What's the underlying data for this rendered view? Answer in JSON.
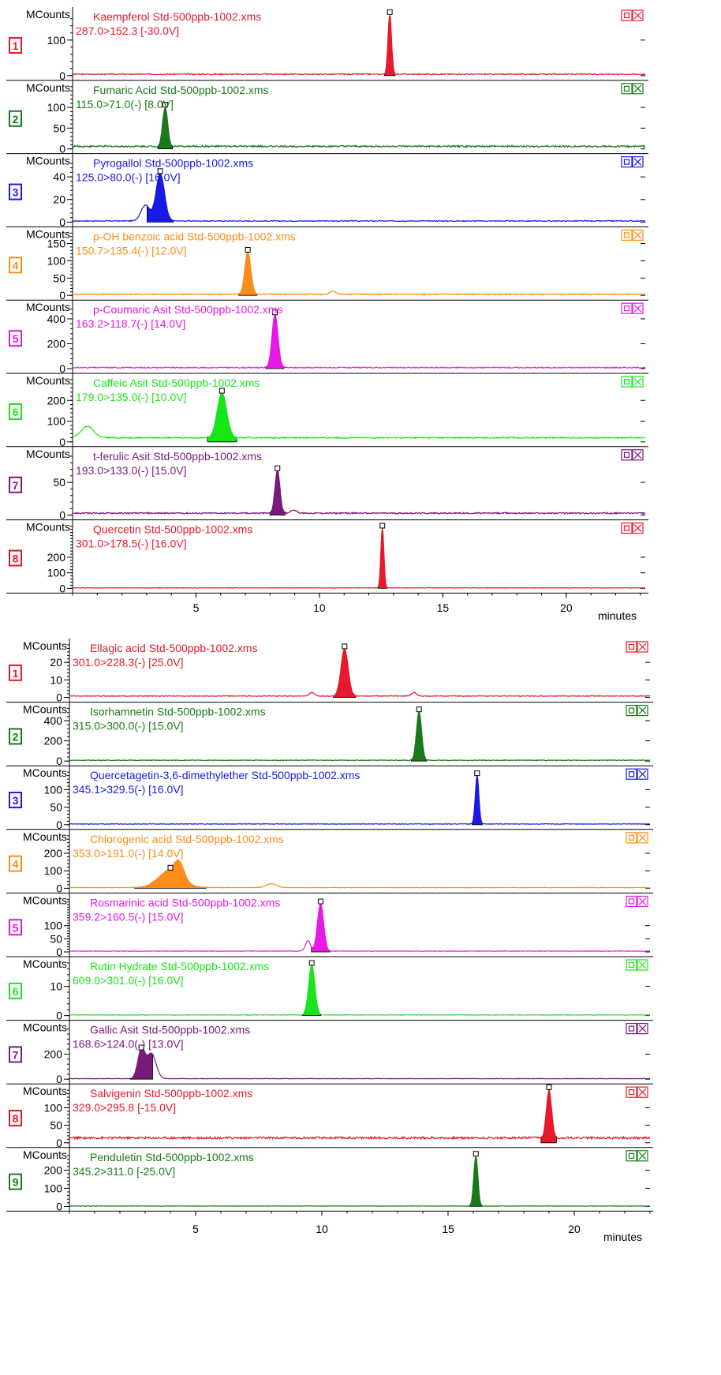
{
  "chart_data": [
    {
      "type": "line",
      "title": "",
      "xlabel": "minutes",
      "xlim": [
        0,
        23.2
      ],
      "x_ticks": [
        5,
        10,
        15,
        20
      ],
      "grid": false,
      "panels": [
        {
          "index": "1",
          "name": "Kaempferol Std-500ppb-1002.xms",
          "transition": "287.0>152.3 [-30.0V]",
          "color": "#e8192c",
          "ylabel": "MCounts",
          "ylim": [
            0,
            175
          ],
          "yticks": [
            0,
            100
          ],
          "baseline": 4,
          "noise": 1.5,
          "peaks": [
            {
              "rt": 12.85,
              "height": 168,
              "width": 0.07
            }
          ]
        },
        {
          "index": "2",
          "name": "Fumaric Acid Std-500ppb-1002.xms",
          "transition": "115.0>71.0(-) [8.0V]",
          "color": "#1a7a1a",
          "ylabel": "MCounts",
          "ylim": [
            0,
            150
          ],
          "yticks": [
            0,
            50,
            100
          ],
          "baseline": 6,
          "noise": 2,
          "peaks": [
            {
              "rt": 3.75,
              "height": 95,
              "width": 0.1
            }
          ]
        },
        {
          "index": "3",
          "name": "Pyrogallol Std-500ppb-1002.xms",
          "transition": "125.0>80.0(-) [16.0V]",
          "color": "#1a1ae6",
          "ylabel": "MCounts",
          "ylim": [
            0,
            55
          ],
          "yticks": [
            0,
            20,
            40
          ],
          "baseline": 1,
          "noise": 0.4,
          "peaks": [
            {
              "rt": 2.95,
              "height": 14,
              "width": 0.18
            },
            {
              "rt": 3.55,
              "height": 42,
              "width": 0.17
            }
          ]
        },
        {
          "index": "4",
          "name": "p-OH benzoic acid Std-500ppb-1002.xms",
          "transition": "150.7>135.4(-) [12.0V]",
          "color": "#ff8c1a",
          "ylabel": "MCounts",
          "ylim": [
            0,
            180
          ],
          "yticks": [
            0,
            50,
            100,
            150
          ],
          "baseline": 3,
          "noise": 1.5,
          "peaks": [
            {
              "rt": 7.1,
              "height": 122,
              "width": 0.12
            },
            {
              "rt": 10.55,
              "height": 10,
              "width": 0.12
            }
          ]
        },
        {
          "index": "5",
          "name": "p-Coumaric Asit Std-500ppb-1002.xms",
          "transition": "163.2>118.7(-) [14.0V]",
          "color": "#e619e6",
          "ylabel": "MCounts",
          "ylim": [
            0,
            500
          ],
          "yticks": [
            0,
            200,
            400
          ],
          "baseline": 8,
          "noise": 4,
          "peaks": [
            {
              "rt": 8.2,
              "height": 425,
              "width": 0.12
            }
          ]
        },
        {
          "index": "6",
          "name": "Caffeic Asit Std-500ppb-1002.xms",
          "transition": "179.0>135.0(-) [10.0V]",
          "color": "#19e619",
          "ylabel": "MCounts",
          "ylim": [
            0,
            300
          ],
          "yticks": [
            0,
            100,
            200
          ],
          "baseline": 20,
          "noise": 3,
          "peaks": [
            {
              "rt": 0.6,
              "height": 55,
              "width": 0.25
            },
            {
              "rt": 6.05,
              "height": 215,
              "width": 0.19
            }
          ]
        },
        {
          "index": "7",
          "name": "t-ferulic Asit Std-500ppb-1002.xms",
          "transition": "193.0>133.0(-) [15.0V]",
          "color": "#7a1a7a",
          "ylabel": "MCounts",
          "ylim": [
            0,
            95
          ],
          "yticks": [
            0,
            50
          ],
          "baseline": 3,
          "noise": 1,
          "peaks": [
            {
              "rt": 8.3,
              "height": 65,
              "width": 0.1
            },
            {
              "rt": 8.95,
              "height": 5,
              "width": 0.12
            }
          ]
        },
        {
          "index": "8",
          "name": "Quercetin Std-500ppb-1002.xms",
          "transition": "301.0>178.5(-) [16.0V]",
          "color": "#e8192c",
          "ylabel": "MCounts",
          "ylim": [
            0,
            400
          ],
          "yticks": [
            0,
            100,
            200
          ],
          "baseline": 3,
          "noise": 1.5,
          "peaks": [
            {
              "rt": 12.55,
              "height": 385,
              "width": 0.06
            }
          ]
        }
      ]
    },
    {
      "type": "line",
      "title": "",
      "xlabel": "minutes",
      "xlim": [
        0,
        23
      ],
      "x_ticks": [
        5,
        10,
        15,
        20
      ],
      "grid": false,
      "panels": [
        {
          "index": "1",
          "name": "Ellagic acid Std-500ppb-1002.xms",
          "transition": "301.0>228.3(-) [25.0V]",
          "color": "#e8192c",
          "ylabel": "MCounts",
          "ylim": [
            0,
            30
          ],
          "yticks": [
            0,
            10,
            20
          ],
          "baseline": 0.8,
          "noise": 0.2,
          "peaks": [
            {
              "rt": 10.9,
              "height": 27,
              "width": 0.14
            },
            {
              "rt": 9.6,
              "height": 2,
              "width": 0.1
            },
            {
              "rt": 13.65,
              "height": 2,
              "width": 0.1
            }
          ]
        },
        {
          "index": "2",
          "name": "Isorhamnetin Std-500ppb-1002.xms",
          "transition": "315.0>300.0(-) [15.0V]",
          "color": "#1a7a1a",
          "ylabel": "MCounts",
          "ylim": [
            0,
            520
          ],
          "yticks": [
            0,
            200,
            400
          ],
          "baseline": 8,
          "noise": 3,
          "peaks": [
            {
              "rt": 13.85,
              "height": 480,
              "width": 0.1
            }
          ]
        },
        {
          "index": "3",
          "name": "Quercetagetin-3,6-dimethylether Std-500ppb-1002.xms",
          "transition": "345.1>329.5(-) [16.0V]",
          "color": "#1a1ae6",
          "ylabel": "MCounts",
          "ylim": [
            0,
            150
          ],
          "yticks": [
            0,
            50,
            100
          ],
          "baseline": 2,
          "noise": 0.8,
          "peaks": [
            {
              "rt": 16.15,
              "height": 138,
              "width": 0.07
            }
          ]
        },
        {
          "index": "4",
          "name": "Chlorogenic acid Std-500ppb-1002.xms",
          "transition": "353.0>191.0(-) [14.0V]",
          "color": "#ff8c1a",
          "ylabel": "MCounts",
          "ylim": [
            0,
            300
          ],
          "yticks": [
            0,
            100,
            200
          ],
          "baseline": 4,
          "noise": 1.5,
          "peaks": [
            {
              "rt": 4.0,
              "height": 100,
              "width": 0.45
            },
            {
              "rt": 4.35,
              "height": 80,
              "width": 0.18
            },
            {
              "rt": 8.0,
              "height": 22,
              "width": 0.2
            }
          ]
        },
        {
          "index": "5",
          "name": "Rosmarinic acid Std-500ppb-1002.xms",
          "transition": "359.2>160.5(-) [15.0V]",
          "color": "#e619e6",
          "ylabel": "MCounts",
          "ylim": [
            0,
            200
          ],
          "yticks": [
            0,
            50,
            100
          ],
          "baseline": 3,
          "noise": 0.8,
          "peaks": [
            {
              "rt": 9.95,
              "height": 180,
              "width": 0.12
            },
            {
              "rt": 9.45,
              "height": 40,
              "width": 0.1
            }
          ]
        },
        {
          "index": "6",
          "name": "Rutin Hydrate Std-500ppb-1002.xms",
          "transition": "609.0>301.0(-) [16.0V]",
          "color": "#19e619",
          "ylabel": "MCounts",
          "ylim": [
            0,
            18
          ],
          "yticks": [
            0,
            10
          ],
          "baseline": 0.2,
          "noise": 0.08,
          "peaks": [
            {
              "rt": 9.6,
              "height": 17,
              "width": 0.12
            }
          ]
        },
        {
          "index": "7",
          "name": "Gallic Asit Std-500ppb-1002.xms",
          "transition": "168.6>124.0(-) [13.0V]",
          "color": "#7a1a7a",
          "ylabel": "MCounts",
          "ylim": [
            0,
            420
          ],
          "yticks": [
            0,
            200
          ],
          "baseline": 4,
          "noise": 1.5,
          "peaks": [
            {
              "rt": 2.85,
              "height": 230,
              "width": 0.14
            },
            {
              "rt": 3.25,
              "height": 200,
              "width": 0.18
            }
          ]
        },
        {
          "index": "8",
          "name": "Salvigenin Std-500ppb-1002.xms",
          "transition": "329.0>295.8 [-15.0V]",
          "color": "#e8192c",
          "ylabel": "MCounts",
          "ylim": [
            0,
            150
          ],
          "yticks": [
            0,
            50,
            100
          ],
          "baseline": 14,
          "noise": 3,
          "peaks": [
            {
              "rt": 19.0,
              "height": 138,
              "width": 0.1
            }
          ]
        },
        {
          "index": "9",
          "name": "Penduletin Std-500ppb-1002.xms",
          "transition": "345.2>311.0 [-25.0V]",
          "color": "#1a7a1a",
          "ylabel": "MCounts",
          "ylim": [
            0,
            290
          ],
          "yticks": [
            0,
            100,
            200
          ],
          "baseline": 2,
          "noise": 1,
          "peaks": [
            {
              "rt": 16.1,
              "height": 275,
              "width": 0.08
            }
          ]
        }
      ]
    }
  ]
}
